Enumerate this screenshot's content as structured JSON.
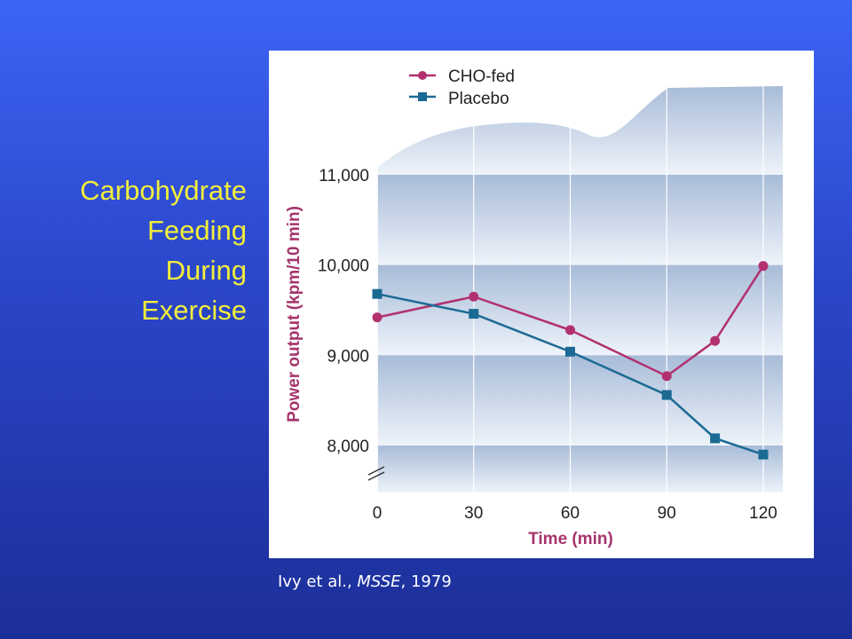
{
  "slide": {
    "title_lines": [
      "Carbohydrate",
      "Feeding",
      "During",
      "Exercise"
    ],
    "citation": {
      "authors": "Ivy et al., ",
      "journal": "MSSE",
      "year": ", 1979"
    }
  },
  "colors": {
    "cho_fed": "#b3306f",
    "placebo": "#1b6a94",
    "axis_text": "#222222",
    "ylabel": "#a5346c",
    "xlabel": "#a5346c"
  },
  "chart_data": {
    "type": "line",
    "title": "",
    "xlabel": "Time (min)",
    "ylabel": "Power output (kpm/10 min)",
    "x_ticks": [
      0,
      30,
      60,
      90,
      120
    ],
    "x_tick_labels": [
      "0",
      "30",
      "60",
      "90",
      "120"
    ],
    "y_ticks": [
      8000,
      9000,
      10000,
      11000
    ],
    "y_tick_labels": [
      "8,000",
      "9,000",
      "10,000",
      "11,000"
    ],
    "xlim": [
      0,
      120
    ],
    "ylim": [
      7500,
      11000
    ],
    "axis_break": true,
    "grid": true,
    "legend_position": "top-left",
    "series": [
      {
        "name": "CHO-fed",
        "marker": "circle",
        "x": [
          0,
          30,
          60,
          90,
          105,
          120
        ],
        "y": [
          9420,
          9650,
          9280,
          8770,
          9160,
          9990
        ]
      },
      {
        "name": "Placebo",
        "marker": "square",
        "x": [
          0,
          30,
          60,
          90,
          105,
          120
        ],
        "y": [
          9680,
          9460,
          9040,
          8560,
          8080,
          7900
        ]
      }
    ]
  }
}
